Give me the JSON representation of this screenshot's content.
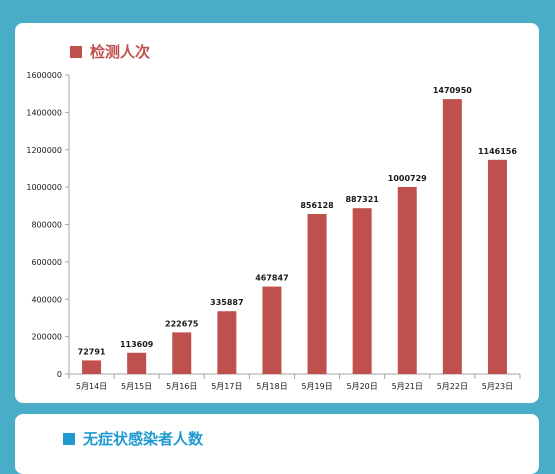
{
  "colors": {
    "background": "#4aadc8",
    "card": "#ffffff",
    "bar": "#c0504d",
    "title_main": "#c0504d",
    "title_next": "#1e9ad0",
    "axis": "#a6a6a6",
    "text": "#1a1a1a"
  },
  "section_main": {
    "title": "检测人次"
  },
  "section_next": {
    "title": "无症状感染者人数"
  },
  "chart_data": {
    "type": "bar",
    "title": "",
    "xlabel": "",
    "ylabel": "",
    "categories": [
      "5月14日",
      "5月15日",
      "5月16日",
      "5月17日",
      "5月18日",
      "5月19日",
      "5月20日",
      "5月21日",
      "5月22日",
      "5月23日"
    ],
    "values": [
      72791,
      113609,
      222675,
      335887,
      467847,
      856128,
      887321,
      1000729,
      1470950,
      1146156
    ],
    "ylim": [
      0,
      1600000
    ],
    "yticks": [
      0,
      200000,
      400000,
      600000,
      800000,
      1000000,
      1200000,
      1400000,
      1600000
    ],
    "grid": false,
    "legend": "none",
    "data_labels": true
  }
}
